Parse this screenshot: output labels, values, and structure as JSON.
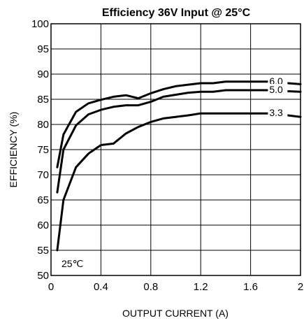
{
  "chart_data": {
    "type": "line",
    "title": "Efficiency 36V Input @ 25°C",
    "xlabel": "OUTPUT CURRENT (A)",
    "ylabel": "EFFICIENCY (%)",
    "xlim": [
      0,
      2
    ],
    "ylim": [
      50,
      100
    ],
    "x_ticks": [
      0,
      0.4,
      0.8,
      1.2,
      1.6,
      2
    ],
    "x_tick_labels": [
      "0",
      "0.4",
      "0.8",
      "1.2",
      "1.6",
      "2"
    ],
    "y_ticks": [
      50,
      55,
      60,
      65,
      70,
      75,
      80,
      85,
      90,
      95,
      100
    ],
    "y_tick_labels": [
      "50",
      "55",
      "60",
      "65",
      "70",
      "75",
      "80",
      "85",
      "90",
      "95",
      "100"
    ],
    "grid": true,
    "annotation": "25℃",
    "series": [
      {
        "name": "6.0",
        "x": [
          0.05,
          0.1,
          0.2,
          0.3,
          0.4,
          0.5,
          0.6,
          0.7,
          0.8,
          0.9,
          1.0,
          1.1,
          1.2,
          1.3,
          1.4,
          1.5,
          1.6,
          1.7,
          1.8,
          1.9,
          2.0
        ],
        "values": [
          71.5,
          78.0,
          82.5,
          84.2,
          84.9,
          85.5,
          85.8,
          85.2,
          86.2,
          87.0,
          87.6,
          87.9,
          88.2,
          88.2,
          88.5,
          88.5,
          88.5,
          88.5,
          88.5,
          88.2,
          88.0
        ]
      },
      {
        "name": "5.0",
        "x": [
          0.05,
          0.1,
          0.2,
          0.3,
          0.4,
          0.5,
          0.6,
          0.7,
          0.8,
          0.9,
          1.0,
          1.1,
          1.2,
          1.3,
          1.4,
          1.5,
          1.6,
          1.7,
          1.8,
          1.9,
          2.0
        ],
        "values": [
          66.5,
          75.0,
          79.8,
          82.0,
          82.9,
          83.5,
          83.8,
          83.8,
          84.5,
          85.5,
          85.9,
          86.3,
          86.5,
          86.5,
          86.8,
          86.8,
          86.8,
          86.8,
          86.8,
          86.6,
          86.5
        ]
      },
      {
        "name": "3.3",
        "x": [
          0.05,
          0.1,
          0.2,
          0.3,
          0.4,
          0.5,
          0.6,
          0.7,
          0.8,
          0.9,
          1.0,
          1.1,
          1.2,
          1.3,
          1.4,
          1.5,
          1.6,
          1.7,
          1.8,
          1.9,
          2.0
        ],
        "values": [
          55.0,
          65.0,
          71.5,
          74.2,
          75.9,
          76.2,
          78.2,
          79.5,
          80.5,
          81.2,
          81.5,
          81.8,
          82.2,
          82.2,
          82.2,
          82.2,
          82.2,
          82.2,
          82.2,
          81.8,
          81.5
        ]
      }
    ]
  }
}
